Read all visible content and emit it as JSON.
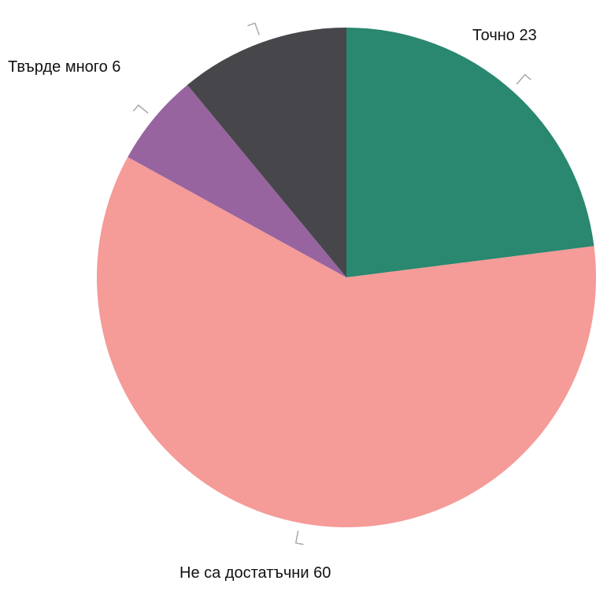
{
  "chart_data": {
    "type": "pie",
    "title": "",
    "slices": [
      {
        "label": "Точно",
        "value": 23,
        "color": "#2a8770"
      },
      {
        "label": "Не са достатъчни",
        "value": 60,
        "color": "#f59b98"
      },
      {
        "label": "Твърде много",
        "value": 6,
        "color": "#9764a0"
      },
      {
        "label": "",
        "value": 11,
        "color": "#47474b"
      }
    ],
    "start_angle_deg": 0,
    "direction": "clockwise",
    "labels_text": [
      "Точно 23",
      "Не са достатъчни 60",
      "Твърде много 6"
    ]
  }
}
